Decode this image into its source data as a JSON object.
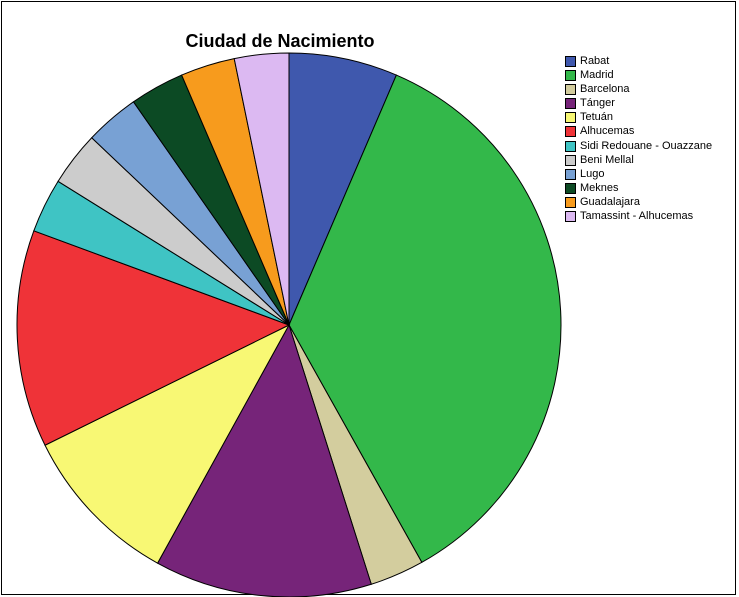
{
  "chart_data": {
    "type": "pie",
    "title": "Ciudad de Nacimiento",
    "legend_position": "top-right",
    "slices": [
      {
        "label": "Rabat",
        "value": 6.8,
        "color": "#3f58ad"
      },
      {
        "label": "Madrid",
        "value": 37.3,
        "color": "#33b84a"
      },
      {
        "label": "Barcelona",
        "value": 3.4,
        "color": "#d3cd9e"
      },
      {
        "label": "Tánger",
        "value": 13.6,
        "color": "#762479"
      },
      {
        "label": "Tetuán",
        "value": 10.2,
        "color": "#f8f874"
      },
      {
        "label": "Alhucemas",
        "value": 13.6,
        "color": "#ef3338"
      },
      {
        "label": "Sidi Redouane - Ouazzane",
        "value": 3.4,
        "color": "#3fc4c4"
      },
      {
        "label": "Beni Mellal",
        "value": 3.4,
        "color": "#cccccc"
      },
      {
        "label": "Lugo",
        "value": 3.4,
        "color": "#78a1d4"
      },
      {
        "label": "Meknes",
        "value": 3.4,
        "color": "#0c4a24"
      },
      {
        "label": "Guadalajara",
        "value": 3.4,
        "color": "#f79b1d"
      },
      {
        "label": "Tamassint - Alhucemas",
        "value": 3.4,
        "color": "#dcb9f2"
      }
    ]
  }
}
